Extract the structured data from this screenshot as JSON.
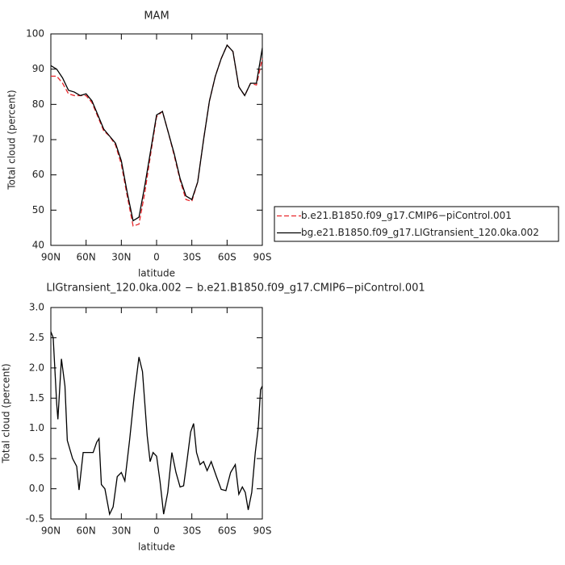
{
  "chart_data": [
    {
      "type": "line",
      "title": "MAM",
      "xlabel": "latitude",
      "ylabel": "Total cloud (percent)",
      "x": [
        90,
        85,
        80,
        75,
        70,
        65,
        60,
        55,
        50,
        45,
        40,
        35,
        30,
        25,
        20,
        15,
        10,
        5,
        0,
        -5,
        -10,
        -15,
        -20,
        -25,
        -30,
        -35,
        -40,
        -45,
        -50,
        -55,
        -60,
        -65,
        -70,
        -75,
        -80,
        -85,
        -90
      ],
      "series": [
        {
          "name": "b.e21.B1850.f09_g17.CMIP6−piControl.001",
          "color": "#e8262a",
          "style": "dashed",
          "values": [
            88,
            88,
            86,
            83,
            82.5,
            82.5,
            82.5,
            80.5,
            76.5,
            72.5,
            71,
            68.5,
            63,
            54,
            45.5,
            46,
            55,
            66,
            76.5,
            78,
            72,
            65.5,
            58.5,
            53,
            52.5,
            58,
            70,
            81,
            88,
            93,
            96.8,
            95,
            85,
            82.5,
            86,
            85.5,
            93
          ]
        },
        {
          "name": "bg.e21.B1850.f09_g17.LIGtransient_120.0ka.002",
          "color": "#000000",
          "style": "solid",
          "values": [
            91,
            90,
            87.5,
            84,
            83.5,
            82.5,
            83,
            81,
            77,
            73,
            71,
            69,
            64,
            55,
            47,
            48,
            57,
            67,
            77,
            78,
            72,
            66,
            59,
            54,
            53,
            58,
            70,
            81,
            88,
            93,
            96.8,
            95,
            85,
            82.5,
            86,
            86,
            96
          ]
        }
      ],
      "xlim": [
        90,
        -90
      ],
      "xticks": [
        {
          "value": 90,
          "label": "90N"
        },
        {
          "value": 60,
          "label": "60N"
        },
        {
          "value": 30,
          "label": "30N"
        },
        0,
        {
          "value": -30,
          "label": "30S"
        },
        {
          "value": -60,
          "label": "60S"
        },
        {
          "value": -90,
          "label": "90S"
        }
      ],
      "ylim": [
        40,
        100
      ],
      "yticks": [
        40,
        50,
        60,
        70,
        80,
        90,
        100
      ],
      "legend": "outside-right"
    },
    {
      "type": "line",
      "title": "LIGtransient_120.0ka.002 − b.e21.B1850.f09_g17.CMIP6−piControl.001",
      "xlabel": "latitude",
      "ylabel": "Total cloud (percent)",
      "x": [
        90,
        88,
        85,
        84,
        81,
        78,
        76,
        71.5,
        68,
        66,
        62.5,
        58,
        54,
        51,
        49,
        47,
        44,
        40,
        37,
        33.5,
        30,
        27,
        23,
        19,
        15,
        12,
        8,
        5.5,
        3,
        0,
        -3,
        -6,
        -9.5,
        -13,
        -16.5,
        -20,
        -23,
        -26,
        -29,
        -31.5,
        -34,
        -37,
        -40,
        -43,
        -46.5,
        -51,
        -55,
        -59,
        -63,
        -67,
        -70,
        -73,
        -75.5,
        -78,
        -81,
        -84,
        -86.5,
        -88.5,
        -90
      ],
      "values": [
        2.6,
        2.5,
        1.4,
        1.15,
        2.15,
        1.7,
        0.8,
        0.5,
        0.37,
        -0.02,
        0.6,
        0.6,
        0.6,
        0.77,
        0.83,
        0.07,
        0.0,
        -0.42,
        -0.3,
        0.2,
        0.27,
        0.13,
        0.8,
        1.55,
        2.18,
        1.94,
        0.88,
        0.45,
        0.6,
        0.54,
        0.11,
        -0.42,
        -0.06,
        0.6,
        0.27,
        0.03,
        0.05,
        0.48,
        0.94,
        1.08,
        0.6,
        0.4,
        0.45,
        0.3,
        0.45,
        0.2,
        -0.01,
        -0.03,
        0.27,
        0.4,
        -0.09,
        0.03,
        -0.06,
        -0.35,
        -0.06,
        0.6,
        1.0,
        1.64,
        1.7
      ],
      "color": "#000000",
      "xlim": [
        90,
        -90
      ],
      "xticks": [
        {
          "value": 90,
          "label": "90N"
        },
        {
          "value": 60,
          "label": "60N"
        },
        {
          "value": 30,
          "label": "30N"
        },
        0,
        {
          "value": -30,
          "label": "30S"
        },
        {
          "value": -60,
          "label": "60S"
        },
        {
          "value": -90,
          "label": "90S"
        }
      ],
      "ylim": [
        -0.5,
        3.0
      ],
      "yticks": [
        -0.5,
        {
          "value": 0,
          "label": "0.0"
        },
        0.5,
        {
          "value": 1,
          "label": "1.0"
        },
        1.5,
        {
          "value": 2,
          "label": "2.0"
        },
        2.5,
        {
          "value": 3,
          "label": "3.0"
        }
      ]
    }
  ]
}
